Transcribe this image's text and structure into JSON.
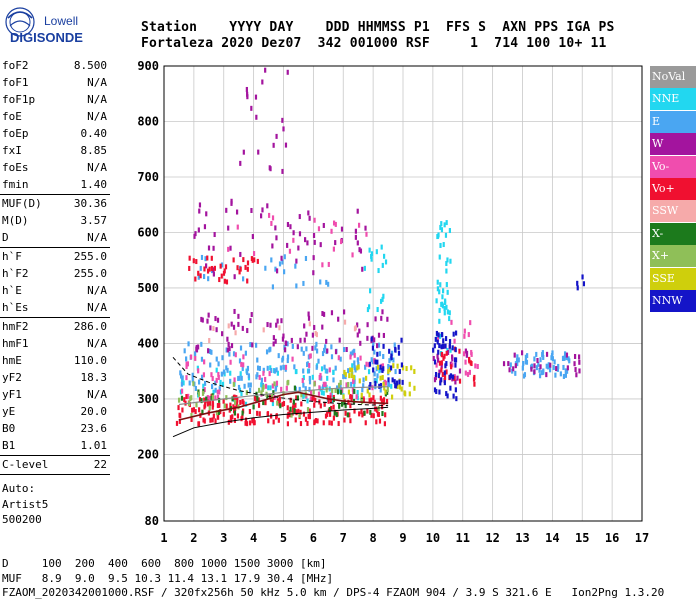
{
  "logo": {
    "line1": "Lowell",
    "line2": "DIGISONDE"
  },
  "header": {
    "line1": "Station    YYYY DAY    DDD HHMMSS P1  FFS S  AXN PPS IGA PS",
    "line2": "Fortaleza 2020 Dez07  342 001000 RSF     1  714 100 10+ 11"
  },
  "params": {
    "g1": [
      {
        "label": "foF2",
        "value": "8.500"
      },
      {
        "label": "foF1",
        "value": "N/A"
      },
      {
        "label": "foF1p",
        "value": "N/A"
      },
      {
        "label": "foE",
        "value": "N/A"
      },
      {
        "label": "foEp",
        "value": "0.40"
      },
      {
        "label": "fxI",
        "value": "8.85"
      },
      {
        "label": "foEs",
        "value": "N/A"
      },
      {
        "label": "fmin",
        "value": "1.40"
      }
    ],
    "g2": [
      {
        "label": "MUF(D)",
        "value": "30.36"
      },
      {
        "label": "M(D)",
        "value": "3.57"
      },
      {
        "label": "D",
        "value": "N/A"
      }
    ],
    "g3": [
      {
        "label": "h`F",
        "value": "255.0"
      },
      {
        "label": "h`F2",
        "value": "255.0"
      },
      {
        "label": "h`E",
        "value": "N/A"
      },
      {
        "label": "h`Es",
        "value": "N/A"
      }
    ],
    "g4": [
      {
        "label": "hmF2",
        "value": "286.0"
      },
      {
        "label": "hmF1",
        "value": "N/A"
      },
      {
        "label": "hmE",
        "value": "110.0"
      },
      {
        "label": "yF2",
        "value": "18.3"
      },
      {
        "label": "yF1",
        "value": "N/A"
      },
      {
        "label": "yE",
        "value": "20.0"
      },
      {
        "label": "B0",
        "value": "23.6"
      },
      {
        "label": "B1",
        "value": "1.01"
      }
    ],
    "g5": [
      {
        "label": "C-level",
        "value": "22"
      }
    ],
    "autoscale": [
      "Auto:",
      "Artist5",
      "500200"
    ]
  },
  "legend": [
    {
      "label": "NoVal",
      "color": "#9a9a9a"
    },
    {
      "label": "NNE",
      "color": "#22d7f0"
    },
    {
      "label": "E",
      "color": "#4aa6f2"
    },
    {
      "label": "W",
      "color": "#a3149e"
    },
    {
      "label": "Vo-",
      "color": "#f04dae"
    },
    {
      "label": "Vo+",
      "color": "#f01030"
    },
    {
      "label": "SSW",
      "color": "#f6aaaa"
    },
    {
      "label": "X-",
      "color": "#1c7a1c"
    },
    {
      "label": "X+",
      "color": "#8fbf58"
    },
    {
      "label": "SSE",
      "color": "#cfcf0c"
    },
    {
      "label": "NNW",
      "color": "#1414c8"
    }
  ],
  "footer": {
    "line1": "D     100  200  400  600  800 1000 1500 3000 [km]",
    "line2": "MUF   8.9  9.0  9.5 10.3 11.4 13.1 17.9 30.4 [MHz]",
    "line3": "FZAOM_2020342001000.RSF / 320fx256h 50 kHz 5.0 km / DPS-4 FZAOM 904 / 3.9 S 321.6 E   Ion2Png 1.3.20"
  },
  "chart_data": {
    "type": "scatter",
    "xlim": [
      1,
      17
    ],
    "ylim": [
      80,
      900
    ],
    "x_ticks": [
      1,
      2,
      3,
      4,
      5,
      6,
      7,
      8,
      9,
      10,
      11,
      12,
      13,
      14,
      15,
      16,
      17
    ],
    "y_ticks": [
      80,
      200,
      300,
      400,
      500,
      600,
      700,
      800,
      900
    ],
    "xlabel": "",
    "ylabel": "",
    "grid": true,
    "clusters": [
      {
        "label": "NNE",
        "x": [
          1.5,
          8.8
        ],
        "y": [
          290,
          360
        ],
        "n": 70
      },
      {
        "label": "NNE",
        "x": [
          10.1,
          10.6
        ],
        "y": [
          380,
          620
        ],
        "n": 45
      },
      {
        "label": "NNE",
        "x": [
          7.7,
          8.5
        ],
        "y": [
          450,
          580
        ],
        "n": 18
      },
      {
        "label": "E",
        "x": [
          1.5,
          8.8
        ],
        "y": [
          315,
          400
        ],
        "n": 170
      },
      {
        "label": "E",
        "x": [
          12.6,
          14.6
        ],
        "y": [
          340,
          385
        ],
        "n": 60
      },
      {
        "label": "E",
        "x": [
          2.1,
          7.0
        ],
        "y": [
          500,
          560
        ],
        "n": 25
      },
      {
        "label": "W",
        "x": [
          2.0,
          8.5
        ],
        "y": [
          385,
          460
        ],
        "n": 80
      },
      {
        "label": "W",
        "x": [
          2.0,
          8.0
        ],
        "y": [
          520,
          660
        ],
        "n": 60
      },
      {
        "label": "W",
        "x": [
          3.2,
          5.2
        ],
        "y": [
          700,
          900
        ],
        "n": 20
      },
      {
        "label": "W",
        "x": [
          12.3,
          15.0
        ],
        "y": [
          340,
          385
        ],
        "n": 25
      },
      {
        "label": "W",
        "x": [
          10.0,
          11.2
        ],
        "y": [
          330,
          400
        ],
        "n": 20
      },
      {
        "label": "Vo-",
        "x": [
          1.5,
          8.5
        ],
        "y": [
          300,
          380
        ],
        "n": 80
      },
      {
        "label": "Vo-",
        "x": [
          10.0,
          11.5
        ],
        "y": [
          340,
          450
        ],
        "n": 20
      },
      {
        "label": "Vo-",
        "x": [
          2.8,
          7.8
        ],
        "y": [
          540,
          640
        ],
        "n": 20
      },
      {
        "label": "Vo+",
        "x": [
          1.4,
          8.5
        ],
        "y": [
          255,
          305
        ],
        "n": 200
      },
      {
        "label": "Vo+",
        "x": [
          1.8,
          4.2
        ],
        "y": [
          510,
          560
        ],
        "n": 35
      },
      {
        "label": "Vo+",
        "x": [
          10.2,
          11.4
        ],
        "y": [
          320,
          390
        ],
        "n": 25
      },
      {
        "label": "SSW",
        "x": [
          2.5,
          8.0
        ],
        "y": [
          400,
          440
        ],
        "n": 12
      },
      {
        "label": "X-",
        "x": [
          1.5,
          8.6
        ],
        "y": [
          270,
          320
        ],
        "n": 45
      },
      {
        "label": "X+",
        "x": [
          1.5,
          8.6
        ],
        "y": [
          270,
          330
        ],
        "n": 45
      },
      {
        "label": "SSE",
        "x": [
          7.0,
          9.5
        ],
        "y": [
          300,
          360
        ],
        "n": 40
      },
      {
        "label": "NNW",
        "x": [
          7.8,
          9.0
        ],
        "y": [
          320,
          410
        ],
        "n": 35
      },
      {
        "label": "NNW",
        "x": [
          10.0,
          10.8
        ],
        "y": [
          300,
          420
        ],
        "n": 45
      },
      {
        "label": "NNW",
        "x": [
          14.8,
          15.2
        ],
        "y": [
          480,
          520
        ],
        "n": 4
      }
    ],
    "traces": {
      "black_lower": {
        "x": [
          1.3,
          2,
          3,
          4,
          5,
          6,
          7,
          8,
          8.5
        ],
        "y": [
          232,
          248,
          258,
          266,
          272,
          276,
          280,
          283,
          285
        ]
      },
      "black_upper": {
        "x": [
          1.3,
          1.8,
          2.5,
          3.5,
          4.5,
          5.5,
          6.5,
          7.5,
          8.5
        ],
        "y": [
          375,
          345,
          330,
          315,
          305,
          298,
          293,
          290,
          288
        ]
      },
      "dark_red_profile": {
        "x": [
          1.5,
          2.5,
          3.5,
          4.5,
          5.0,
          5.5,
          6.0,
          6.5,
          7.0,
          8.0,
          8.5
        ],
        "y": [
          262,
          275,
          285,
          300,
          308,
          312,
          306,
          300,
          296,
          293,
          292
        ]
      },
      "grey_line": {
        "x": [
          1.5,
          3,
          5,
          7,
          8.5
        ],
        "y": [
          290,
          300,
          312,
          320,
          322
        ]
      }
    }
  }
}
